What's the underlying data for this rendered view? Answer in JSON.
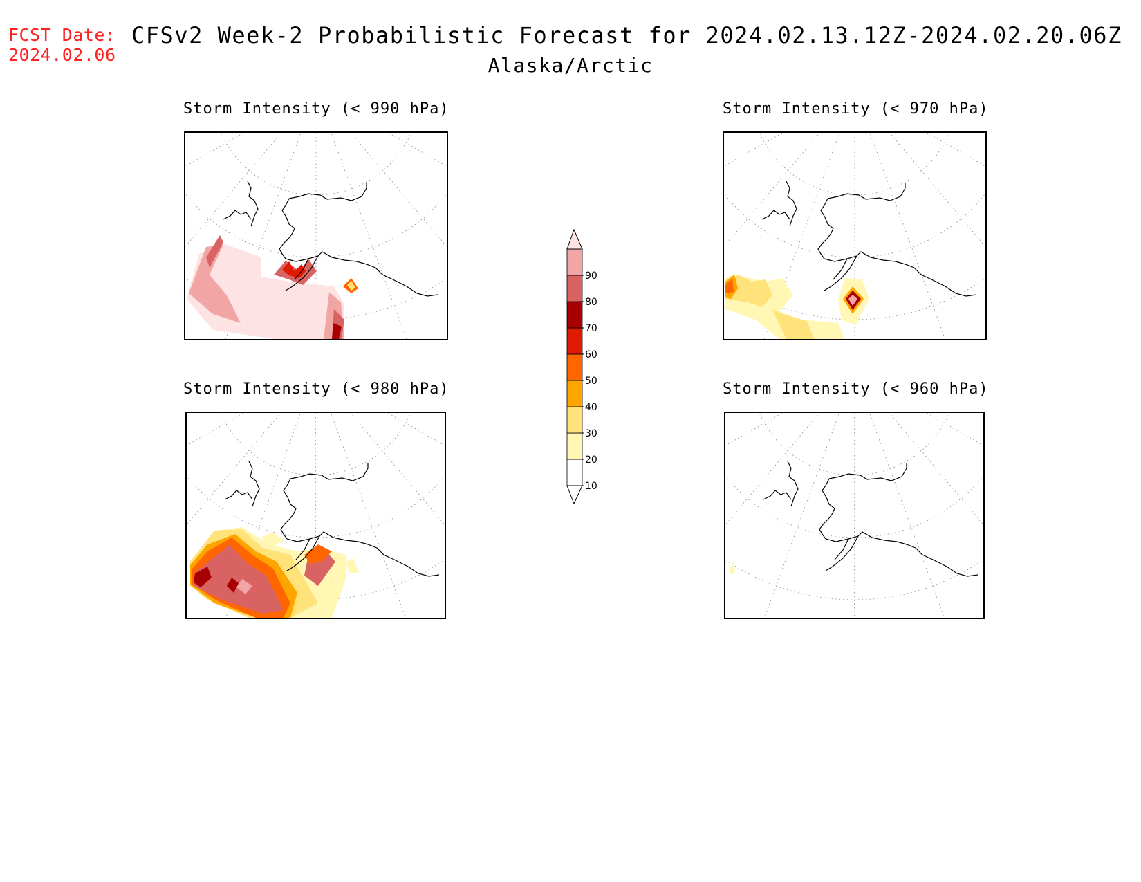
{
  "header": {
    "fcst_label": "FCST Date:",
    "fcst_date": "2024.02.06",
    "title": "CFSv2 Week-2 Probabilistic Forecast for 2024.02.13.12Z-2024.02.20.06Z",
    "region": "Alaska/Arctic"
  },
  "panels": [
    {
      "title": "Storm Intensity (< 990 hPa)"
    },
    {
      "title": "Storm Intensity (< 970 hPa)"
    },
    {
      "title": "Storm Intensity (< 980 hPa)"
    },
    {
      "title": "Storm Intensity (< 960 hPa)"
    }
  ],
  "colorbar": {
    "levels": [
      "10",
      "20",
      "30",
      "40",
      "50",
      "60",
      "70",
      "80",
      "90"
    ],
    "colors": {
      "lt10": "#ffffff",
      "10-20": "#fff7b3",
      "20-30": "#ffe27a",
      "30-40": "#ffa500",
      "40-50": "#ff6600",
      "50-60": "#e01a00",
      "60-70": "#a80000",
      "70-80": "#d96363",
      "80-90": "#f2a5a5",
      "gt90": "#fde3e3"
    }
  }
}
